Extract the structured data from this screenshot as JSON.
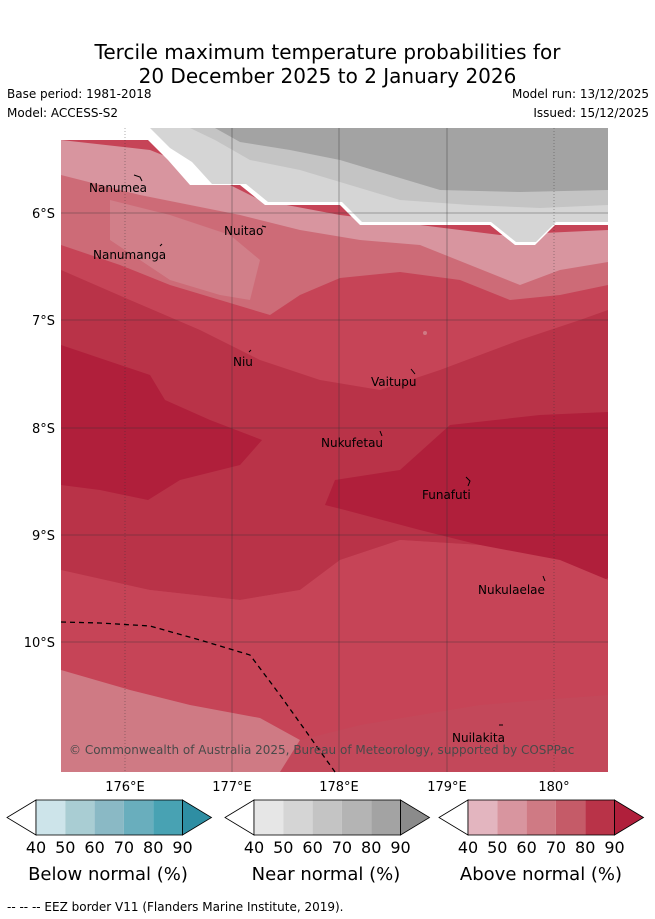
{
  "title_line1": "Tercile maximum temperature probabilities for",
  "title_line2": "20 December 2025 to 2 January 2026",
  "base_period": "Base period: 1981-2018",
  "model": "Model: ACCESS-S2",
  "model_run": "Model run: 13/12/2025",
  "issued": "Issued: 15/12/2025",
  "copyright": "© Commonwealth of Australia 2025, Bureau of Meteorology, supported by COSPPac",
  "lon_ticks": [
    "176°E",
    "177°E",
    "178°E",
    "179°E",
    "180°"
  ],
  "lat_ticks": [
    "6°S",
    "7°S",
    "8°S",
    "9°S",
    "10°S"
  ],
  "places": {
    "nanumea": "Nanumea",
    "nanumanga": "Nanumanga",
    "nuitao": "Nuitao",
    "niu": "Niu",
    "vaitupu": "Vaitupu",
    "nukufetau": "Nukufetau",
    "funafuti": "Funafuti",
    "nukulaelae": "Nukulaelae",
    "nuilakita": "Nuilakita"
  },
  "legends": {
    "below": {
      "title": "Below normal (%)",
      "ticks": [
        "40",
        "50",
        "60",
        "70",
        "80",
        "90"
      ],
      "colors": [
        "#ffffff",
        "#cde4ea",
        "#a9cdd3",
        "#8ab9c5",
        "#69aebd",
        "#48a2b3",
        "#2e8ea3"
      ]
    },
    "near": {
      "title": "Near normal (%)",
      "ticks": [
        "40",
        "50",
        "60",
        "70",
        "80",
        "90"
      ],
      "colors": [
        "#ffffff",
        "#e6e6e6",
        "#d5d5d5",
        "#c4c4c4",
        "#b4b4b4",
        "#a3a3a3",
        "#8b8b8b"
      ]
    },
    "above": {
      "title": "Above normal (%)",
      "ticks": [
        "40",
        "50",
        "60",
        "70",
        "80",
        "90"
      ],
      "colors": [
        "#ffffff",
        "#e3b5bf",
        "#d8959f",
        "#cf7a84",
        "#c55b68",
        "#b93348",
        "#b01f3b"
      ]
    }
  },
  "footnote": "--  --  -- EEZ border V11 (Flanders Marine Institute, 2019)."
}
